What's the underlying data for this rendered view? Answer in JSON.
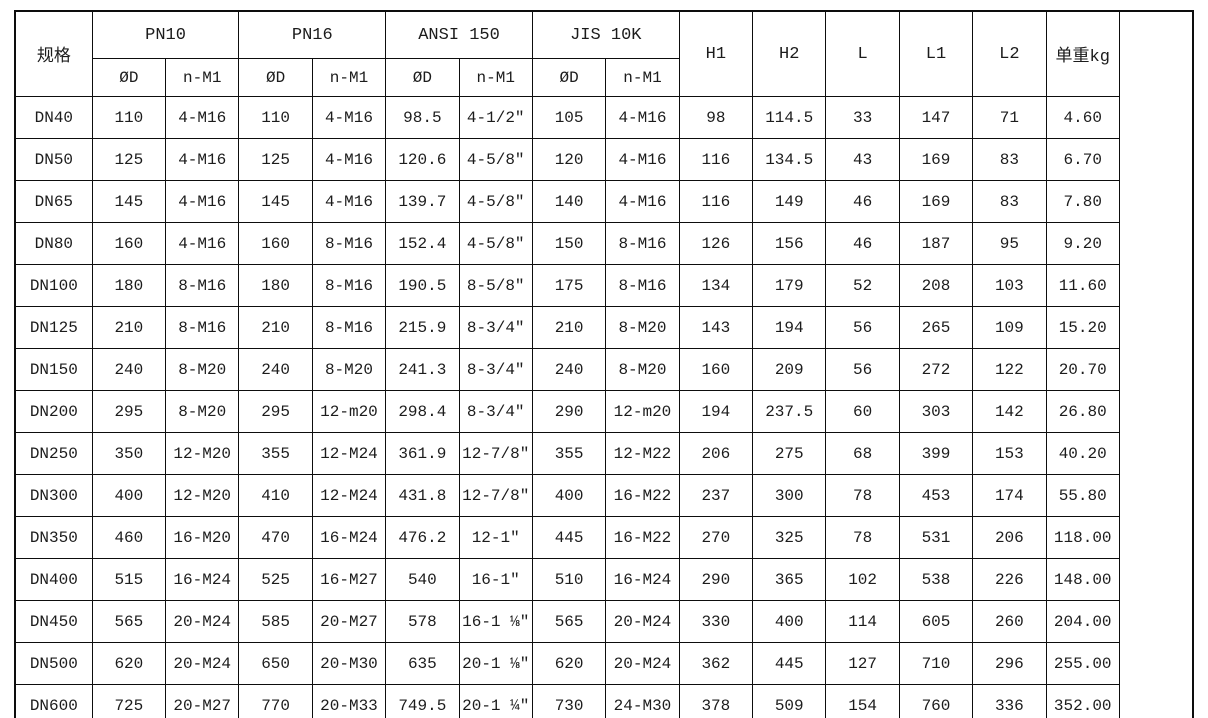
{
  "page": {
    "background": "#ffffff",
    "border_color": "#0d0d0d",
    "text_color": "#1c1c1c"
  },
  "table": {
    "header": {
      "spec": "规格",
      "groups": [
        {
          "label": "PN10"
        },
        {
          "label": "PN16"
        },
        {
          "label": "ANSI 150"
        },
        {
          "label": "JIS 10K"
        }
      ],
      "sub_diameter": "ØD",
      "sub_bolts": "n-M1",
      "singles": [
        "H1",
        "H2",
        "L",
        "L1",
        "L2",
        "单重kg"
      ]
    },
    "rows": [
      [
        "DN40",
        "110",
        "4-M16",
        "110",
        "4-M16",
        "98.5",
        "4-1/2″",
        "105",
        "4-M16",
        "98",
        "114.5",
        "33",
        "147",
        "71",
        "4.60"
      ],
      [
        "DN50",
        "125",
        "4-M16",
        "125",
        "4-M16",
        "120.6",
        "4-5/8″",
        "120",
        "4-M16",
        "116",
        "134.5",
        "43",
        "169",
        "83",
        "6.70"
      ],
      [
        "DN65",
        "145",
        "4-M16",
        "145",
        "4-M16",
        "139.7",
        "4-5/8″",
        "140",
        "4-M16",
        "116",
        "149",
        "46",
        "169",
        "83",
        "7.80"
      ],
      [
        "DN80",
        "160",
        "4-M16",
        "160",
        "8-M16",
        "152.4",
        "4-5/8″",
        "150",
        "8-M16",
        "126",
        "156",
        "46",
        "187",
        "95",
        "9.20"
      ],
      [
        "DN100",
        "180",
        "8-M16",
        "180",
        "8-M16",
        "190.5",
        "8-5/8″",
        "175",
        "8-M16",
        "134",
        "179",
        "52",
        "208",
        "103",
        "11.60"
      ],
      [
        "DN125",
        "210",
        "8-M16",
        "210",
        "8-M16",
        "215.9",
        "8-3/4″",
        "210",
        "8-M20",
        "143",
        "194",
        "56",
        "265",
        "109",
        "15.20"
      ],
      [
        "DN150",
        "240",
        "8-M20",
        "240",
        "8-M20",
        "241.3",
        "8-3/4″",
        "240",
        "8-M20",
        "160",
        "209",
        "56",
        "272",
        "122",
        "20.70"
      ],
      [
        "DN200",
        "295",
        "8-M20",
        "295",
        "12-m20",
        "298.4",
        "8-3/4″",
        "290",
        "12-m20",
        "194",
        "237.5",
        "60",
        "303",
        "142",
        "26.80"
      ],
      [
        "DN250",
        "350",
        "12-M20",
        "355",
        "12-M24",
        "361.9",
        "12-7/8″",
        "355",
        "12-M22",
        "206",
        "275",
        "68",
        "399",
        "153",
        "40.20"
      ],
      [
        "DN300",
        "400",
        "12-M20",
        "410",
        "12-M24",
        "431.8",
        "12-7/8″",
        "400",
        "16-M22",
        "237",
        "300",
        "78",
        "453",
        "174",
        "55.80"
      ],
      [
        "DN350",
        "460",
        "16-M20",
        "470",
        "16-M24",
        "476.2",
        "12-1″",
        "445",
        "16-M22",
        "270",
        "325",
        "78",
        "531",
        "206",
        "118.00"
      ],
      [
        "DN400",
        "515",
        "16-M24",
        "525",
        "16-M27",
        "540",
        "16-1″",
        "510",
        "16-M24",
        "290",
        "365",
        "102",
        "538",
        "226",
        "148.00"
      ],
      [
        "DN450",
        "565",
        "20-M24",
        "585",
        "20-M27",
        "578",
        "16-1 ⅛″",
        "565",
        "20-M24",
        "330",
        "400",
        "114",
        "605",
        "260",
        "204.00"
      ],
      [
        "DN500",
        "620",
        "20-M24",
        "650",
        "20-M30",
        "635",
        "20-1 ⅛″",
        "620",
        "20-M24",
        "362",
        "445",
        "127",
        "710",
        "296",
        "255.00"
      ],
      [
        "DN600",
        "725",
        "20-M27",
        "770",
        "20-M33",
        "749.5",
        "20-1 ¼″",
        "730",
        "24-M30",
        "378",
        "509",
        "154",
        "760",
        "336",
        "352.00"
      ]
    ]
  }
}
